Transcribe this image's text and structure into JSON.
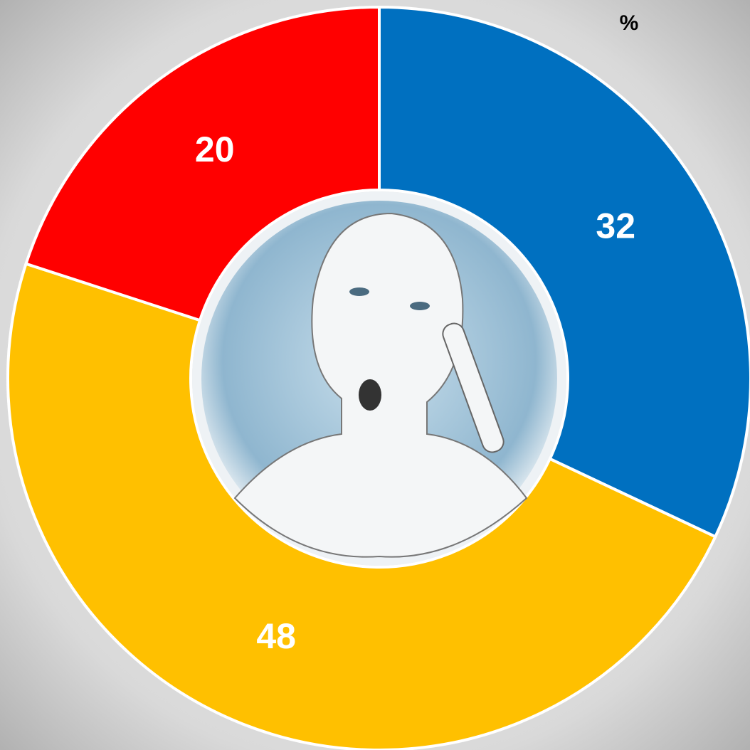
{
  "chart_data": {
    "type": "pie",
    "title": "%",
    "donut": true,
    "values": [
      32,
      48,
      20
    ],
    "colors": [
      "#0070c0",
      "#ffc000",
      "#ff0000"
    ]
  }
}
